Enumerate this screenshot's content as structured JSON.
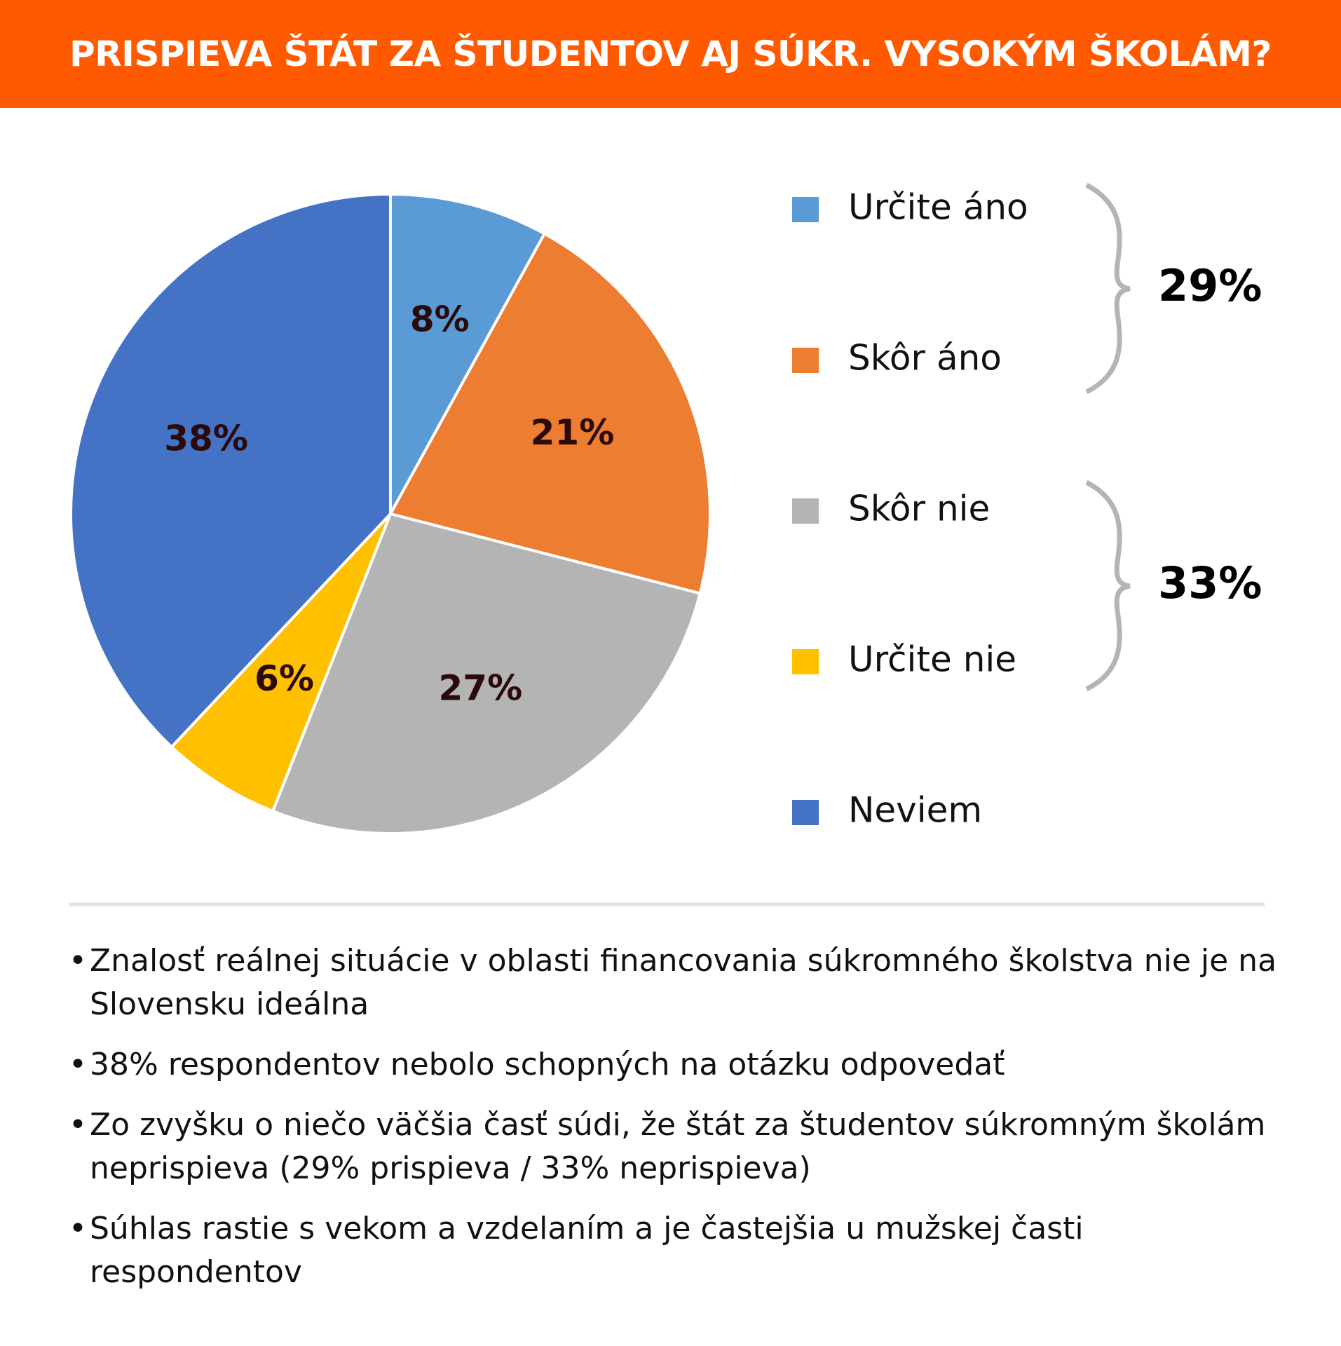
{
  "chart_data": {
    "type": "pie",
    "title": "PRISPIEVA ŠTÁT ZA ŠTUDENTOV AJ SÚKR. VYSOKÝM ŠKOLÁM?",
    "categories": [
      "Určite áno",
      "Skôr áno",
      "Skôr nie",
      "Určite nie",
      "Neviem"
    ],
    "values": [
      8,
      21,
      27,
      6,
      38
    ],
    "value_labels": [
      "8%",
      "21%",
      "27%",
      "6%",
      "38%"
    ],
    "colors": [
      "#5b9bd5",
      "#ed7d31",
      "#b4b4b4",
      "#ffc000",
      "#4472c4"
    ],
    "group_labels": [
      "29%",
      "33%"
    ]
  },
  "notes": [
    "Znalosť reálnej situácie v oblasti financovania súkromného školstva nie je na Slovensku ideálna",
    "38% respondentov nebolo schopných na otázku odpovedať",
    "Zo zvyšku o niečo väčšia časť súdi, že štát za študentov súkromným školám neprispieva (29% prispieva / 33% neprispieva)",
    "Súhlas rastie s vekom a vzdelaním a je častejšia u mužskej časti respondentov"
  ]
}
